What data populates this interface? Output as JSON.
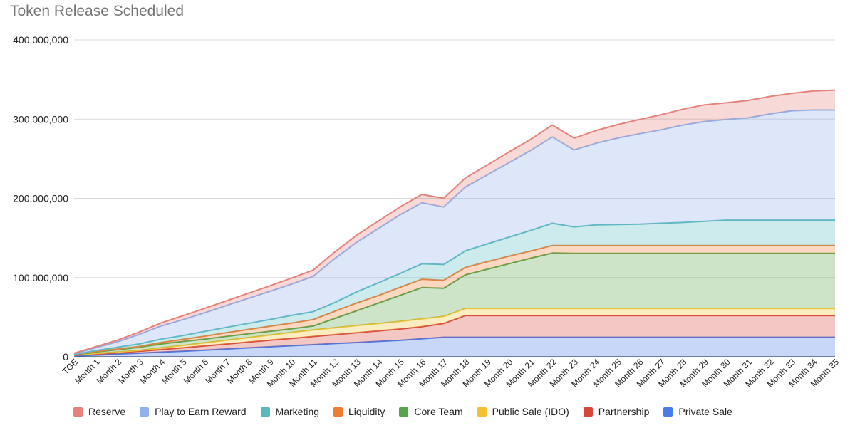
{
  "chart_data": {
    "type": "area",
    "stacked": true,
    "title": "Token Release Scheduled",
    "xlabel": "",
    "ylabel": "",
    "ylim": [
      0,
      400000000
    ],
    "y_ticks": [
      "0",
      "100,000,000",
      "200,000,000",
      "300,000,000",
      "400,000,000"
    ],
    "y_tick_values": [
      0,
      100000000,
      200000000,
      300000000,
      400000000
    ],
    "categories": [
      "TGE",
      "Month 1",
      "Month 2",
      "Month 3",
      "Month 4",
      "Month 5",
      "Month 6",
      "Month 7",
      "Month 8",
      "Month 9",
      "Month 10",
      "Month 11",
      "Month 12",
      "Month 13",
      "Month 14",
      "Month 15",
      "Month 16",
      "Month 17",
      "Month 18",
      "Month 19",
      "Month 20",
      "Month 21",
      "Month 22",
      "Month 23",
      "Month 24",
      "Month 25",
      "Month 26",
      "Month 27",
      "Month 28",
      "Month 29",
      "Month 30",
      "Month 31",
      "Month 32",
      "Month 33",
      "Month 34",
      "Month 35"
    ],
    "grid": true,
    "legend_position": "bottom",
    "series": [
      {
        "name": "Private Sale",
        "color": "#4a7be8",
        "values": [
          1000000,
          2200000,
          3400000,
          4600000,
          5800000,
          7000000,
          8400000,
          9800000,
          11200000,
          12600000,
          13900000,
          15300000,
          16700000,
          18000000,
          19400000,
          20800000,
          22700000,
          24600000,
          24600000,
          24600000,
          24600000,
          24600000,
          24600000,
          24600000,
          24600000,
          24600000,
          24600000,
          24600000,
          24600000,
          24600000,
          24600000,
          24600000,
          24600000,
          24600000,
          24600000,
          24600000
        ]
      },
      {
        "name": "Partnership",
        "color": "#d6473b",
        "values": [
          1000000,
          1300000,
          1800000,
          2300000,
          3300000,
          4300000,
          5300000,
          6300000,
          7300000,
          8300000,
          9300000,
          10300000,
          11300000,
          12300000,
          13300000,
          14300000,
          15300000,
          17400000,
          27400000,
          27400000,
          27400000,
          27400000,
          27400000,
          27400000,
          27400000,
          27400000,
          27400000,
          27400000,
          27400000,
          27400000,
          27400000,
          27400000,
          27400000,
          27400000,
          27400000,
          27400000
        ]
      },
      {
        "name": "Public Sale (IDO)",
        "color": "#f2c236",
        "values": [
          300000,
          600000,
          900000,
          1200000,
          2100000,
          3000000,
          3900000,
          4800000,
          5700000,
          6500000,
          7500000,
          8400000,
          8800000,
          9200000,
          9400000,
          9600000,
          9800000,
          9000000,
          9000000,
          9000000,
          9000000,
          9000000,
          9000000,
          9000000,
          9000000,
          9000000,
          9000000,
          9000000,
          9000000,
          9000000,
          9000000,
          9000000,
          9000000,
          9000000,
          9000000,
          9000000
        ]
      },
      {
        "name": "Core Team",
        "color": "#58a44c",
        "values": [
          200000,
          1900000,
          2900000,
          3900000,
          5000000,
          5000000,
          4700000,
          4800000,
          4800000,
          4800000,
          4500000,
          4800000,
          11700000,
          18700000,
          25800000,
          32900000,
          39600000,
          35500000,
          42500000,
          49500000,
          56500000,
          63500000,
          70000000,
          69500000,
          69500000,
          69500000,
          69500000,
          69500000,
          69500000,
          69500000,
          69500000,
          69500000,
          69500000,
          69500000,
          69500000,
          69500000
        ]
      },
      {
        "name": "Liquidity",
        "color": "#ef7d33",
        "values": [
          300000,
          700000,
          800000,
          1000000,
          1800000,
          2700000,
          3700000,
          4600000,
          5500000,
          6400000,
          7300000,
          8200000,
          9100000,
          9800000,
          9500000,
          10200000,
          10500000,
          10000000,
          9300000,
          9500000,
          9500000,
          9000000,
          9500000,
          10000000,
          10000000,
          10000000,
          10000000,
          10000000,
          10000000,
          10000000,
          10000000,
          10000000,
          10000000,
          10000000,
          10000000,
          10000000
        ]
      },
      {
        "name": "Marketing",
        "color": "#5ab9bf",
        "values": [
          200000,
          1100000,
          2200000,
          3300000,
          4300000,
          4800000,
          6000000,
          6800000,
          7600000,
          8400000,
          9700000,
          10000000,
          11000000,
          14000000,
          16000000,
          17500000,
          19500000,
          20000000,
          21000000,
          22500000,
          24000000,
          26000000,
          28000000,
          23500000,
          26000000,
          26500000,
          27000000,
          28000000,
          29000000,
          30500000,
          32000000,
          32000000,
          32000000,
          32000000,
          32000000,
          32000000
        ]
      },
      {
        "name": "Play to Earn Reward",
        "color": "#8fb1ec",
        "values": [
          1000000,
          3500000,
          7000000,
          12000000,
          16500000,
          20000000,
          23500000,
          27500000,
          31500000,
          35500000,
          39500000,
          44500000,
          55500000,
          62500000,
          68500000,
          74000000,
          77000000,
          72500000,
          80500000,
          87000000,
          94000000,
          101000000,
          109000000,
          97000000,
          103000000,
          109000000,
          114000000,
          118000000,
          123000000,
          126000000,
          127000000,
          129000000,
          134000000,
          138000000,
          139000000,
          139000000
        ]
      },
      {
        "name": "Reserve",
        "color": "#e5827b",
        "values": [
          500000,
          1500000,
          2000000,
          3000000,
          4000000,
          5000000,
          5500000,
          6000000,
          6500000,
          7000000,
          7500000,
          8000000,
          8500000,
          9000000,
          9500000,
          10000000,
          10500000,
          11000000,
          11500000,
          12500000,
          13500000,
          14000000,
          15000000,
          15000000,
          16000000,
          17000000,
          18000000,
          19000000,
          20000000,
          21000000,
          21000000,
          22000000,
          22000000,
          22000000,
          24000000,
          25000000
        ]
      }
    ],
    "legend_order": [
      "Reserve",
      "Play to Earn Reward",
      "Marketing",
      "Liquidity",
      "Core Team",
      "Public Sale (IDO)",
      "Partnership",
      "Private Sale"
    ]
  }
}
